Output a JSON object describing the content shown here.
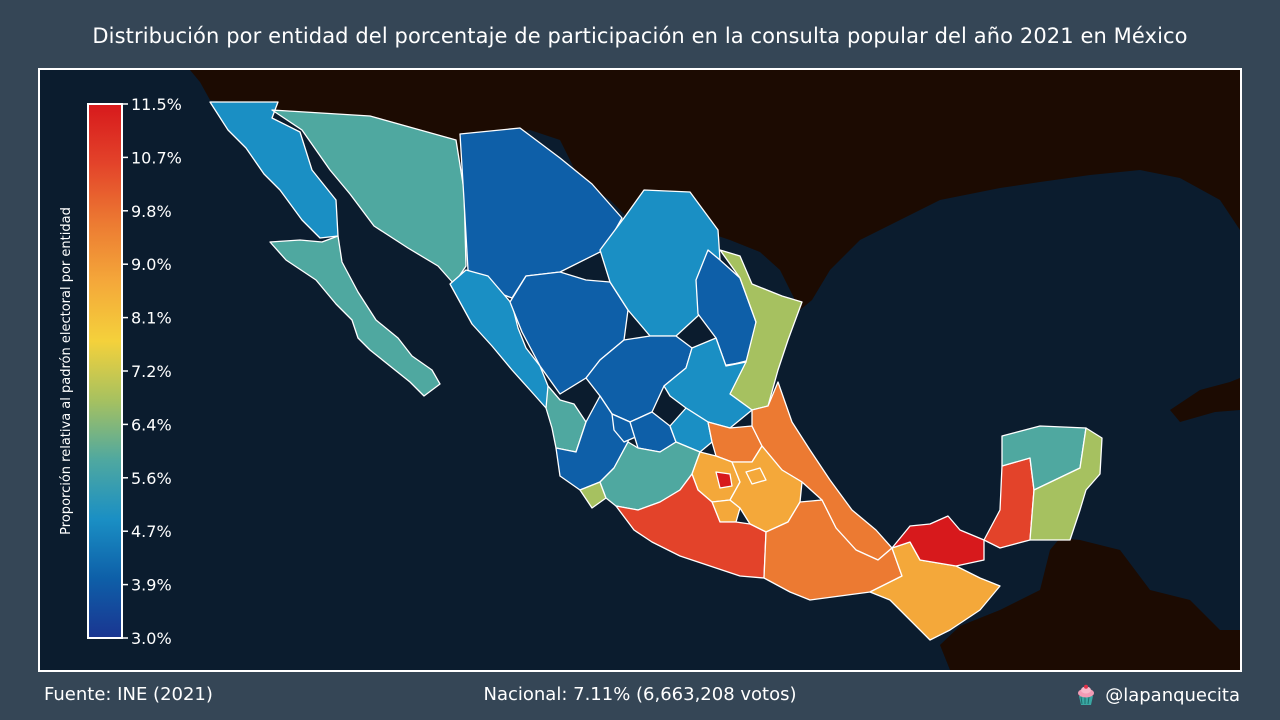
{
  "title": "Distribución por entidad del porcentaje de participación en la consulta popular del año 2021 en México",
  "legend": {
    "label": "Proporción relativa al padrón electoral por entidad",
    "ticks": [
      "11.5%",
      "10.7%",
      "9.8%",
      "9.0%",
      "8.1%",
      "7.2%",
      "6.4%",
      "5.6%",
      "4.7%",
      "3.9%",
      "3.0%"
    ],
    "range": [
      3.0,
      11.5
    ],
    "colors": [
      "#1a3591",
      "#0e5fa8",
      "#1a8fc4",
      "#4fa8a0",
      "#a6c160",
      "#f4d13b",
      "#f4a83a",
      "#ec7a32",
      "#e3432a",
      "#d7191c"
    ]
  },
  "footer": {
    "source": "Fuente: INE (2021)",
    "national": "Nacional: 7.11% (6,663,208 votos)",
    "handle": "@lapanquecita",
    "handle_icon": "cupcake-icon"
  },
  "map_colors": {
    "ocean": "#0b1c2e",
    "land": "#1c0b02",
    "border": "#ffffff"
  }
}
